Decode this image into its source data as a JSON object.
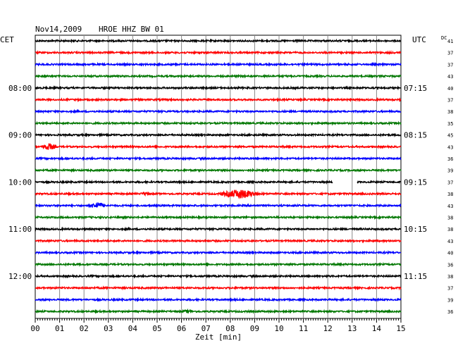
{
  "header": {
    "date": "Nov14,2009",
    "station": "HROE HHZ BW 01",
    "left_tz": "CET",
    "right_tz": "UTC",
    "dc_label": "DC"
  },
  "chart_data": {
    "type": "line",
    "title": "HROE HHZ BW 01",
    "date": "Nov14,2009",
    "xlabel": "Zeit [min]",
    "xlim": [
      0,
      15
    ],
    "x_ticks": [
      "00",
      "01",
      "02",
      "03",
      "04",
      "05",
      "06",
      "07",
      "08",
      "09",
      "10",
      "11",
      "12",
      "13",
      "14",
      "15"
    ],
    "grid": true,
    "trace_colors": [
      "#000000",
      "#ff0000",
      "#0000ff",
      "#007700"
    ],
    "hour_labels_left": [
      "08:00",
      "09:00",
      "10:00",
      "11:00",
      "12:00"
    ],
    "hour_labels_right": [
      "07:15",
      "08:15",
      "09:15",
      "10:15",
      "11:15"
    ],
    "hour_label_trace_index": [
      4,
      8,
      12,
      16,
      20
    ],
    "dc_offsets": [
      41,
      37,
      37,
      43,
      40,
      37,
      38,
      35,
      45,
      43,
      36,
      39,
      37,
      38,
      43,
      38,
      38,
      43,
      40,
      36,
      38,
      37,
      39,
      36
    ],
    "traces": 24,
    "events": [
      {
        "trace": 9,
        "start_min": 0.1,
        "end_min": 1.0,
        "amplitude": 5
      },
      {
        "trace": 13,
        "start_min": 7.3,
        "end_min": 9.5,
        "amplitude": 7
      },
      {
        "trace": 13,
        "start_min": 4.2,
        "end_min": 4.8,
        "amplitude": 3
      },
      {
        "trace": 14,
        "start_min": 2.0,
        "end_min": 3.1,
        "amplitude": 5
      },
      {
        "trace": 23,
        "start_min": 5.8,
        "end_min": 6.7,
        "amplitude": 2.5
      }
    ],
    "gaps": [
      {
        "trace": 12,
        "start_min": 12.2,
        "end_min": 13.2
      }
    ]
  }
}
